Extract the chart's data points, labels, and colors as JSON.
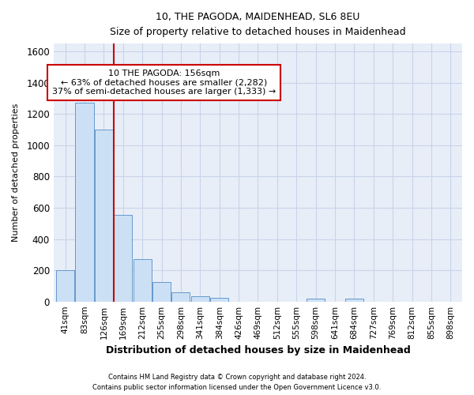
{
  "title1": "10, THE PAGODA, MAIDENHEAD, SL6 8EU",
  "title2": "Size of property relative to detached houses in Maidenhead",
  "xlabel": "Distribution of detached houses by size in Maidenhead",
  "ylabel": "Number of detached properties",
  "footer1": "Contains HM Land Registry data © Crown copyright and database right 2024.",
  "footer2": "Contains public sector information licensed under the Open Government Licence v3.0.",
  "annotation_line1": "10 THE PAGODA: 156sqm",
  "annotation_line2": "← 63% of detached houses are smaller (2,282)",
  "annotation_line3": "37% of semi-detached houses are larger (1,333) →",
  "categories": [
    "41sqm",
    "83sqm",
    "126sqm",
    "169sqm",
    "212sqm",
    "255sqm",
    "298sqm",
    "341sqm",
    "384sqm",
    "426sqm",
    "469sqm",
    "512sqm",
    "555sqm",
    "598sqm",
    "641sqm",
    "684sqm",
    "727sqm",
    "769sqm",
    "812sqm",
    "855sqm",
    "898sqm"
  ],
  "values": [
    200,
    1270,
    1100,
    555,
    270,
    125,
    60,
    32,
    22,
    0,
    0,
    0,
    0,
    20,
    0,
    20,
    0,
    0,
    0,
    0,
    0
  ],
  "bar_color": "#cce0f5",
  "bar_edge_color": "#6699cc",
  "vline_color": "#cc0000",
  "vline_x_index": 3,
  "ylim": [
    0,
    1650
  ],
  "yticks": [
    0,
    200,
    400,
    600,
    800,
    1000,
    1200,
    1400,
    1600
  ],
  "grid_color": "#c8d4e8",
  "annotation_box_edge": "#cc0000",
  "annotation_box_face": "#ffffff",
  "bg_color": "#ffffff",
  "plot_bg_color": "#e8eef8"
}
